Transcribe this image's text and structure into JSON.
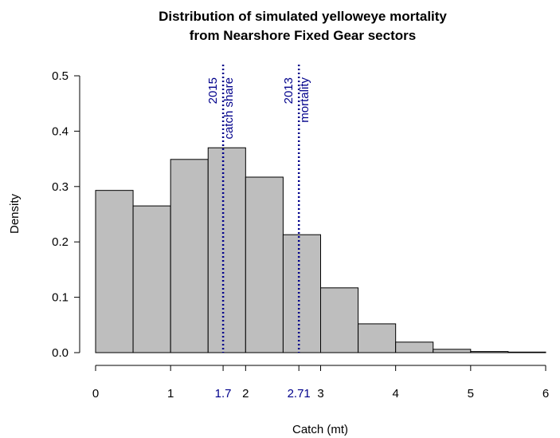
{
  "chart_data": {
    "type": "histogram",
    "title": [
      "Distribution of simulated yelloweye mortality",
      "from Nearshore Fixed Gear sectors"
    ],
    "x_label": "Catch (mt)",
    "y_label": "Density",
    "bins": [
      0,
      0.5,
      1,
      1.5,
      2,
      2.5,
      3,
      3.5,
      4,
      4.5,
      5,
      5.5,
      6
    ],
    "counts": [
      0.293,
      0.265,
      0.349,
      0.37,
      0.317,
      0.213,
      0.117,
      0.052,
      0.019,
      0.006,
      0.002,
      0.001
    ],
    "color": "#bebebe",
    "xlim": [
      0,
      6
    ],
    "ylim": [
      0,
      0.5
    ],
    "xticks": [
      0,
      1,
      1.7,
      2,
      2.71,
      3,
      4,
      5,
      6
    ],
    "yticks": [
      {
        "value": 0,
        "label": "0.0"
      },
      0.1,
      0.2,
      0.3,
      0.4,
      0.5
    ],
    "vlines": [
      {
        "x": 1.7,
        "label": [
          "2015",
          "catch share"
        ],
        "color": "#00008b"
      },
      {
        "x": 2.71,
        "label": [
          "2013",
          "mortality"
        ],
        "color": "#00008b"
      }
    ]
  }
}
